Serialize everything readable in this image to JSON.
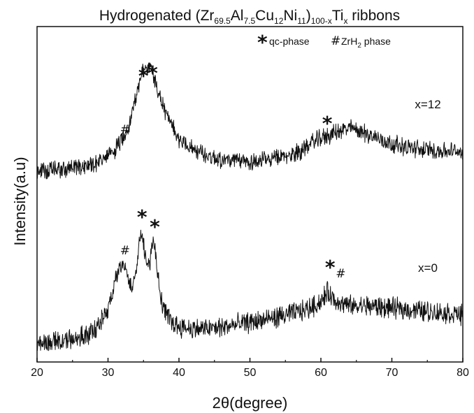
{
  "chart_data": {
    "type": "line",
    "title_parts": [
      "Hydrogenated (Zr",
      "69.5",
      "Al",
      "7.5",
      "Cu",
      "12",
      "Ni",
      "11",
      ")",
      "100-x",
      "Ti",
      "x",
      " ribbons"
    ],
    "xlabel": "2θ(degree)",
    "ylabel": "Intensity(a.u)",
    "xlim": [
      20,
      80
    ],
    "xticks": [
      20,
      30,
      40,
      50,
      60,
      70,
      80
    ],
    "y_ticks_shown": false,
    "legend": {
      "position": "top-right",
      "entries": [
        {
          "marker": "*",
          "label": "qc-phase"
        },
        {
          "marker": "#",
          "label_parts": [
            "ZrH",
            "2",
            " phase"
          ]
        }
      ]
    },
    "series": [
      {
        "name": "x=12",
        "x": [
          20,
          22,
          24,
          26,
          28,
          30,
          31,
          32,
          33,
          33.5,
          34,
          34.5,
          35,
          35.5,
          36,
          36.5,
          37,
          38,
          39,
          40,
          42,
          44,
          46,
          48,
          50,
          52,
          54,
          56,
          57,
          58,
          59,
          60,
          61,
          62,
          63,
          64,
          65,
          66,
          68,
          70,
          72,
          74,
          76,
          78,
          80
        ],
        "y": [
          0.05,
          0.06,
          0.07,
          0.09,
          0.12,
          0.18,
          0.25,
          0.34,
          0.48,
          0.6,
          0.76,
          0.88,
          0.96,
          1.0,
          0.98,
          0.9,
          0.78,
          0.6,
          0.45,
          0.35,
          0.25,
          0.19,
          0.16,
          0.14,
          0.14,
          0.15,
          0.17,
          0.2,
          0.23,
          0.28,
          0.32,
          0.35,
          0.37,
          0.4,
          0.42,
          0.44,
          0.43,
          0.4,
          0.35,
          0.3,
          0.27,
          0.25,
          0.24,
          0.23,
          0.23
        ]
      },
      {
        "name": "x=0",
        "x": [
          20,
          22,
          24,
          26,
          28,
          29,
          30,
          31,
          31.5,
          32,
          32.5,
          33,
          33.5,
          34,
          34.5,
          34.8,
          35.2,
          35.6,
          36,
          36.3,
          36.6,
          37,
          37.5,
          38,
          39,
          40,
          42,
          44,
          46,
          48,
          50,
          52,
          54,
          56,
          58,
          59,
          60,
          60.5,
          61,
          61.5,
          62,
          62.5,
          63,
          64,
          65,
          66,
          68,
          70,
          72,
          74,
          76,
          78,
          80
        ],
        "y": [
          0.04,
          0.05,
          0.06,
          0.08,
          0.13,
          0.2,
          0.32,
          0.5,
          0.6,
          0.66,
          0.62,
          0.52,
          0.48,
          0.62,
          0.86,
          0.94,
          0.72,
          0.6,
          0.72,
          0.84,
          0.82,
          0.56,
          0.38,
          0.28,
          0.2,
          0.17,
          0.15,
          0.15,
          0.16,
          0.18,
          0.2,
          0.22,
          0.24,
          0.27,
          0.3,
          0.33,
          0.36,
          0.4,
          0.44,
          0.4,
          0.36,
          0.37,
          0.34,
          0.33,
          0.32,
          0.33,
          0.32,
          0.31,
          0.3,
          0.29,
          0.28,
          0.27,
          0.26
        ]
      }
    ],
    "annotations": [
      {
        "series": "x=12",
        "marker": "*",
        "x": 35.0
      },
      {
        "series": "x=12",
        "marker": "*",
        "x": 36.3
      },
      {
        "series": "x=12",
        "marker": "#",
        "x": 32.4
      },
      {
        "series": "x=12",
        "marker": "*",
        "x": 60.9
      },
      {
        "series": "x=0",
        "marker": "*",
        "x": 34.8
      },
      {
        "series": "x=0",
        "marker": "*",
        "x": 36.6
      },
      {
        "series": "x=0",
        "marker": "#",
        "x": 32.4
      },
      {
        "series": "x=0",
        "marker": "*",
        "x": 61.3
      },
      {
        "series": "x=0",
        "marker": "#",
        "x": 62.8
      }
    ]
  }
}
